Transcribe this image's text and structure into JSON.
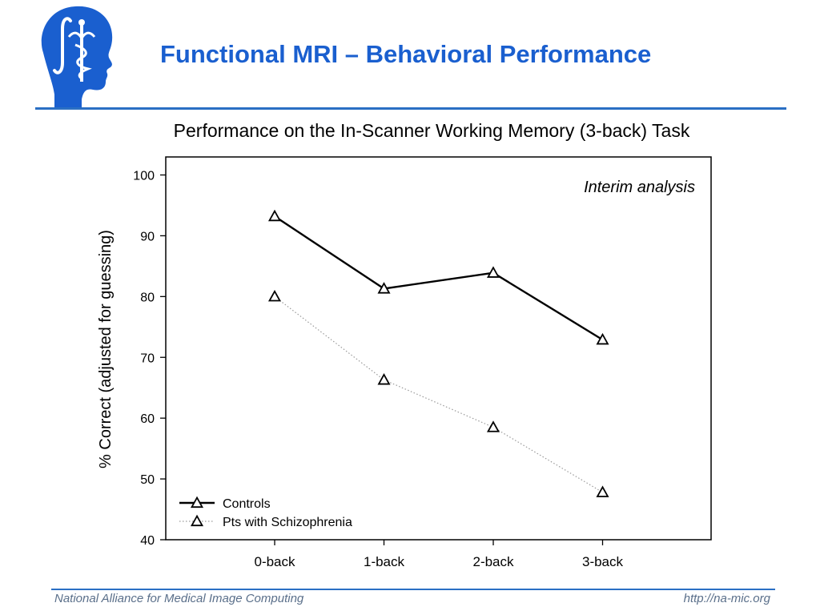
{
  "slide": {
    "title": "Functional MRI – Behavioral Performance",
    "logo_icon": "head-caduceus-integral-logo",
    "accent_color": "#1a5fcf",
    "rule_color": "#2a6fc4"
  },
  "chart_data": {
    "type": "line",
    "title": "Performance on the In-Scanner Working Memory (3-back) Task",
    "annotation": "Interim analysis",
    "xlabel": "",
    "ylabel": "% Correct (adjusted for guessing)",
    "categories": [
      "0-back",
      "1-back",
      "2-back",
      "3-back"
    ],
    "ylim": [
      40,
      100
    ],
    "yticks": [
      40,
      50,
      60,
      70,
      80,
      90,
      100
    ],
    "grid": false,
    "legend_position": "bottom-left",
    "series": [
      {
        "name": "Controls",
        "values": [
          93.2,
          81.3,
          83.9,
          72.9
        ],
        "line_style": "solid",
        "marker": "open-triangle",
        "color": "#000000"
      },
      {
        "name": "Pts with Schizophrenia",
        "values": [
          80.0,
          66.3,
          58.5,
          47.8
        ],
        "line_style": "dotted",
        "marker": "open-triangle",
        "color": "#000000"
      }
    ]
  },
  "footer": {
    "left": "National Alliance for Medical Image Computing",
    "right": "http://na-mic.org"
  }
}
